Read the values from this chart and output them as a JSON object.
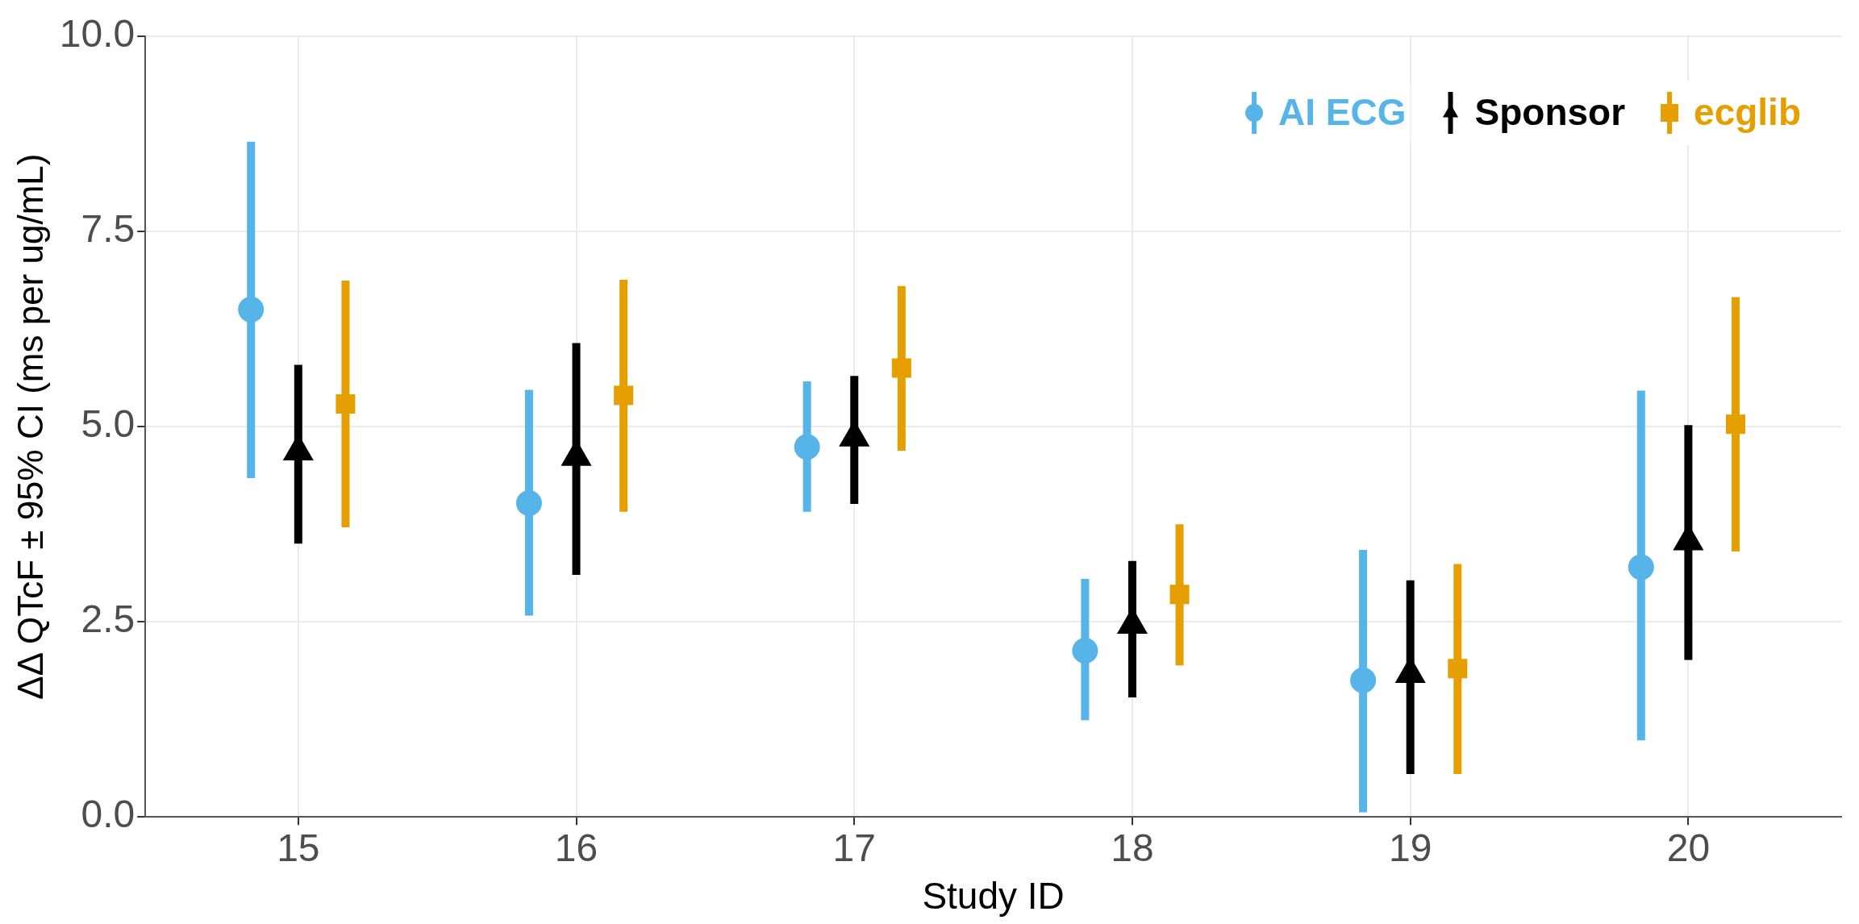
{
  "chart_data": {
    "type": "scatter",
    "xlabel": "Study ID",
    "ylabel": "ΔΔ QTcF ± 95% CI (ms per ug/mL)",
    "categories": [
      "15",
      "16",
      "17",
      "18",
      "19",
      "20"
    ],
    "ylim": [
      0,
      10
    ],
    "yticks": [
      {
        "value": 0,
        "label": "0.0"
      },
      {
        "value": 2.5,
        "label": "2.5"
      },
      {
        "value": 5,
        "label": "5.0"
      },
      {
        "value": 7.5,
        "label": "7.5"
      },
      {
        "value": 10,
        "label": "10.0"
      }
    ],
    "grid": true,
    "legend": "top right",
    "series": [
      {
        "name": "AI ECG",
        "color": "#56b4e9",
        "marker": "circle",
        "values": [
          6.5,
          4.02,
          4.74,
          2.13,
          1.75,
          3.2
        ],
        "errors": [
          [
            4.34,
            8.65
          ],
          [
            2.58,
            5.47
          ],
          [
            3.91,
            5.58
          ],
          [
            1.24,
            3.05
          ],
          [
            0.06,
            3.42
          ],
          [
            0.98,
            5.46
          ]
        ]
      },
      {
        "name": "Sponsor",
        "color": "#000000",
        "marker": "triangle",
        "values": [
          4.68,
          4.61,
          4.86,
          2.46,
          1.83,
          3.53
        ],
        "errors": [
          [
            3.5,
            5.79
          ],
          [
            3.1,
            6.07
          ],
          [
            4.01,
            5.65
          ],
          [
            1.53,
            3.28
          ],
          [
            0.55,
            3.03
          ],
          [
            2.01,
            5.02
          ]
        ]
      },
      {
        "name": "ecglib",
        "color": "#e69f00",
        "marker": "square",
        "values": [
          5.29,
          5.4,
          5.75,
          2.85,
          1.9,
          5.03
        ],
        "errors": [
          [
            3.71,
            6.87
          ],
          [
            3.91,
            6.88
          ],
          [
            4.69,
            6.8
          ],
          [
            1.94,
            3.75
          ],
          [
            0.55,
            3.24
          ],
          [
            3.4,
            6.66
          ]
        ]
      }
    ]
  }
}
